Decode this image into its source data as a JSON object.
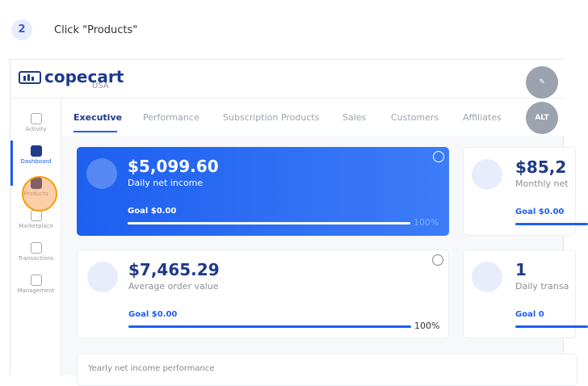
{
  "step": {
    "number": "2",
    "instruction": "Click \"Products\""
  },
  "header": {
    "logo": "copecart",
    "region": "USA",
    "alt_button": "ALT"
  },
  "sidebar": [
    "Activity",
    "Dashboard",
    "Products",
    "Marketplace",
    "Transactions",
    "Management"
  ],
  "tabs": [
    "Executive",
    "Performance",
    "Subscription Products",
    "Sales",
    "Customers",
    "Affiliates"
  ],
  "cards": [
    {
      "value": "$5,099.60",
      "label": "Daily net income",
      "goal": "Goal $0.00",
      "progress": "100%"
    },
    {
      "value": "$85,2",
      "label": "Monthly net",
      "goal": "Goal $0.00"
    },
    {
      "value": "$7,465.29",
      "label": "Average order value",
      "goal": "Goal $0.00",
      "progress": "100%"
    },
    {
      "value": "1",
      "label": "Daily transa",
      "goal": "Goal 0"
    }
  ],
  "section_title": "Yearly net income performance"
}
